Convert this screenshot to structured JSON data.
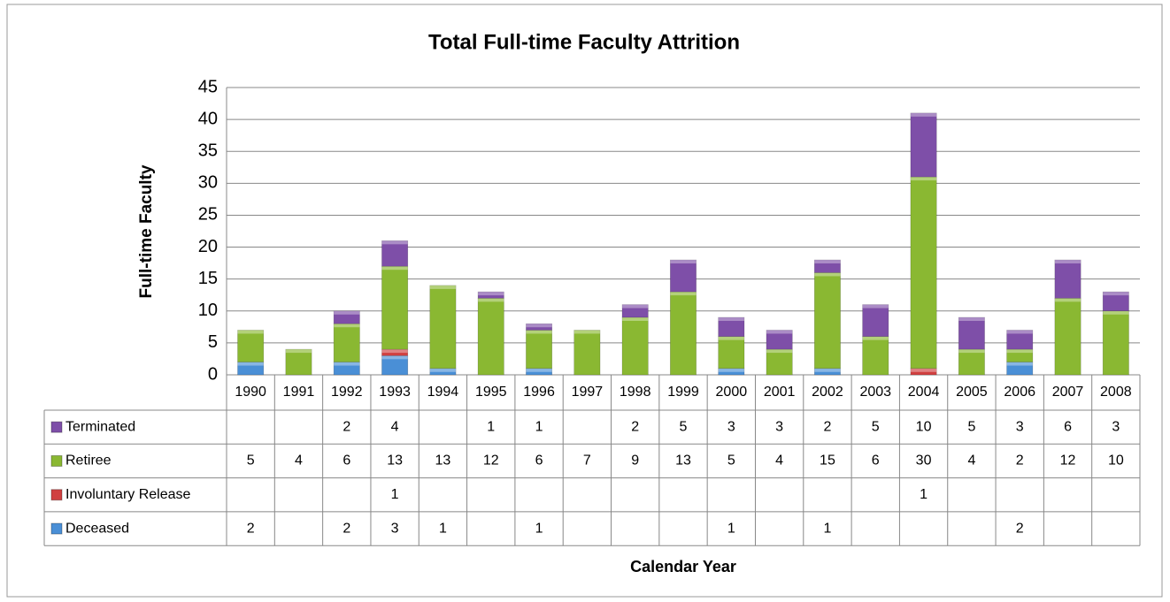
{
  "chart_data": {
    "type": "bar",
    "stacked": true,
    "title": "Total Full-time Faculty Attrition",
    "y_label": "Full-time Faculty",
    "x_label": "Calendar Year",
    "categories": [
      "1990",
      "1991",
      "1992",
      "1993",
      "1994",
      "1995",
      "1996",
      "1997",
      "1998",
      "1999",
      "2000",
      "2001",
      "2002",
      "2003",
      "2004",
      "2005",
      "2006",
      "2007",
      "2008"
    ],
    "series": [
      {
        "name": "Deceased",
        "color": "#4a8fd6",
        "values": [
          2,
          null,
          2,
          3,
          1,
          null,
          1,
          null,
          null,
          null,
          1,
          null,
          1,
          null,
          null,
          null,
          2,
          null,
          null
        ]
      },
      {
        "name": "Involuntary Release",
        "color": "#d04040",
        "values": [
          null,
          null,
          null,
          1,
          null,
          null,
          null,
          null,
          null,
          null,
          null,
          null,
          null,
          null,
          1,
          null,
          null,
          null,
          null
        ]
      },
      {
        "name": "Retiree",
        "color": "#8ab832",
        "values": [
          5,
          4,
          6,
          13,
          13,
          12,
          6,
          7,
          9,
          13,
          5,
          4,
          15,
          6,
          30,
          4,
          2,
          12,
          10
        ]
      },
      {
        "name": "Terminated",
        "color": "#7e4fa8",
        "values": [
          null,
          null,
          2,
          4,
          null,
          1,
          1,
          null,
          2,
          5,
          3,
          3,
          2,
          5,
          10,
          5,
          3,
          6,
          3
        ]
      }
    ],
    "ylim": [
      0,
      45
    ],
    "yticks": [
      0,
      5,
      10,
      15,
      20,
      25,
      30,
      35,
      40,
      45
    ],
    "grid": true
  }
}
